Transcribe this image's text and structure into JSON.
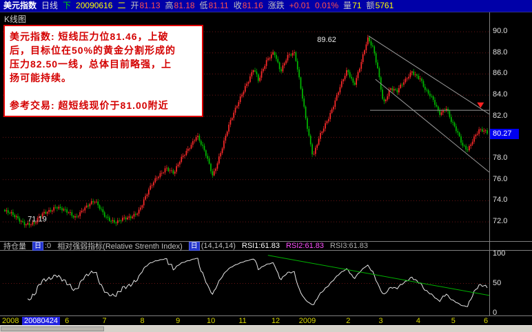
{
  "titlebar": {
    "bg": "#0000a8",
    "segments": [
      {
        "text": "美元指数",
        "color": "#ffffff",
        "bold": true
      },
      {
        "text": "日线",
        "color": "#e0e0e0"
      },
      {
        "text": "下",
        "color": "#00dd00"
      },
      {
        "text": "20090616",
        "color": "#ffff00"
      },
      {
        "text": "二",
        "color": "#ffff00"
      },
      {
        "text": "开",
        "color": "#c0c0c0",
        "tight": true
      },
      {
        "text": "81.13",
        "color": "#ff5050"
      },
      {
        "text": "高",
        "color": "#c0c0c0",
        "tight": true
      },
      {
        "text": "81.18",
        "color": "#ff5050"
      },
      {
        "text": "低",
        "color": "#c0c0c0",
        "tight": true
      },
      {
        "text": "81.11",
        "color": "#ff5050"
      },
      {
        "text": "收",
        "color": "#c0c0c0",
        "tight": true
      },
      {
        "text": "81.16",
        "color": "#ff5050"
      },
      {
        "text": "涨跌",
        "color": "#c0c0c0"
      },
      {
        "text": "+0.01",
        "color": "#ff5050"
      },
      {
        "text": "0.01%",
        "color": "#ff5050"
      },
      {
        "text": "量",
        "color": "#c0c0c0",
        "tight": true
      },
      {
        "text": "71",
        "color": "#ffff00"
      },
      {
        "text": "额",
        "color": "#c0c0c0",
        "tight": true
      },
      {
        "text": "5761",
        "color": "#ffff00"
      }
    ]
  },
  "chart_label": "K线图",
  "annotation": {
    "lines": [
      "美元指数: 短线压力位81.46，上破",
      "后，目标位在50%的黄金分割形成的",
      "压力82.50一线，总体目前略强，上",
      "扬可能持续。",
      "",
      "参考交易: 超短线现价于81.00附近"
    ]
  },
  "price_axis": {
    "ticks": [
      90,
      88,
      86,
      84,
      82,
      80,
      78,
      76,
      74,
      72
    ],
    "current_price": "80.27"
  },
  "peak_label": "89.62",
  "low_label": "71.19",
  "indicator_header": {
    "segments": [
      {
        "text": "持仓量",
        "color": "#c0c0c0"
      },
      {
        "text": "日",
        "color": "#ffffff",
        "chip": true
      },
      {
        "text": ":0",
        "color": "#c0c0c0"
      },
      {
        "text": "相对强弱指标(Relative Strenth Index)",
        "color": "#c0c0c0"
      },
      {
        "text": "日",
        "color": "#ffffff",
        "chip": true
      },
      {
        "text": "(14,14,14)",
        "color": "#c0c0c0"
      },
      {
        "text": "RSI1:61.83",
        "color": "#ffffff"
      },
      {
        "text": "RSI2:61.83",
        "color": "#ff50ff"
      },
      {
        "text": "RSI3:61.83",
        "color": "#b0b0b0"
      }
    ]
  },
  "rsi_axis": {
    "ticks": [
      100,
      50,
      0
    ]
  },
  "time_axis": {
    "year_label": "2008",
    "start_date": "20080424",
    "ticks": [
      {
        "label": "6",
        "f": 0.132
      },
      {
        "label": "7",
        "f": 0.209
      },
      {
        "label": "8",
        "f": 0.287
      },
      {
        "label": "9",
        "f": 0.36
      },
      {
        "label": "10",
        "f": 0.428
      },
      {
        "label": "11",
        "f": 0.493
      },
      {
        "label": "12",
        "f": 0.561
      },
      {
        "label": "2009",
        "f": 0.626
      },
      {
        "label": "2",
        "f": 0.71
      },
      {
        "label": "3",
        "f": 0.777
      },
      {
        "label": "4",
        "f": 0.854
      },
      {
        "label": "5",
        "f": 0.926
      },
      {
        "label": "6",
        "f": 0.993
      }
    ]
  },
  "chart_data": {
    "type": "candlestick",
    "title": "美元指数 日线 (US Dollar Index daily)",
    "date": "20090616",
    "ohlc": {
      "open": 81.13,
      "high": 81.18,
      "low": 81.11,
      "close": 81.16,
      "change": "+0.01",
      "change_pct": "0.01%",
      "volume": 71,
      "amount": 5761
    },
    "last_price_marker": 80.27,
    "marked_high": 89.62,
    "marked_low": 71.19,
    "y_axis": {
      "min": 70.3,
      "max": 91.83,
      "ticks": [
        90,
        88,
        86,
        84,
        82,
        80,
        78,
        76,
        74,
        72
      ]
    },
    "x_range": [
      "20080424",
      "20090616"
    ],
    "n_candles": 296,
    "close_waypoints": [
      [
        0.0,
        73.0
      ],
      [
        0.02,
        72.4
      ],
      [
        0.04,
        72.0
      ],
      [
        0.062,
        71.8
      ],
      [
        0.08,
        72.7
      ],
      [
        0.106,
        73.6
      ],
      [
        0.128,
        72.8
      ],
      [
        0.145,
        72.4
      ],
      [
        0.163,
        73.4
      ],
      [
        0.186,
        73.8
      ],
      [
        0.207,
        72.7
      ],
      [
        0.232,
        71.9
      ],
      [
        0.256,
        72.3
      ],
      [
        0.278,
        73.2
      ],
      [
        0.299,
        74.9
      ],
      [
        0.317,
        76.3
      ],
      [
        0.334,
        77.3
      ],
      [
        0.351,
        76.5
      ],
      [
        0.365,
        77.8
      ],
      [
        0.384,
        79.3
      ],
      [
        0.398,
        80.3
      ],
      [
        0.416,
        78.3
      ],
      [
        0.431,
        76.3
      ],
      [
        0.445,
        78.4
      ],
      [
        0.462,
        80.8
      ],
      [
        0.479,
        82.6
      ],
      [
        0.497,
        84.8
      ],
      [
        0.516,
        86.6
      ],
      [
        0.526,
        85.2
      ],
      [
        0.544,
        87.3
      ],
      [
        0.558,
        88.3
      ],
      [
        0.572,
        86.3
      ],
      [
        0.586,
        87.5
      ],
      [
        0.601,
        87.9
      ],
      [
        0.615,
        84.5
      ],
      [
        0.629,
        80.5
      ],
      [
        0.639,
        78.0
      ],
      [
        0.653,
        80.0
      ],
      [
        0.671,
        82.0
      ],
      [
        0.691,
        84.3
      ],
      [
        0.71,
        86.2
      ],
      [
        0.724,
        85.0
      ],
      [
        0.742,
        87.8
      ],
      [
        0.752,
        89.3
      ],
      [
        0.763,
        88.3
      ],
      [
        0.773,
        86.4
      ],
      [
        0.785,
        83.3
      ],
      [
        0.799,
        84.8
      ],
      [
        0.813,
        84.2
      ],
      [
        0.83,
        85.3
      ],
      [
        0.844,
        86.4
      ],
      [
        0.861,
        85.6
      ],
      [
        0.872,
        84.3
      ],
      [
        0.889,
        83.4
      ],
      [
        0.901,
        82.4
      ],
      [
        0.915,
        82.9
      ],
      [
        0.926,
        81.4
      ],
      [
        0.938,
        80.3
      ],
      [
        0.949,
        79.2
      ],
      [
        0.96,
        79.0
      ],
      [
        0.971,
        80.0
      ],
      [
        0.983,
        80.6
      ],
      [
        1.0,
        80.3
      ]
    ],
    "annotations": [
      {
        "type": "text",
        "label": "89.62",
        "f": 0.652,
        "price": 89.3
      },
      {
        "type": "text",
        "label": "71.19",
        "f": 0.057,
        "price": 72.3
      },
      {
        "type": "arrow-down",
        "f": 0.982,
        "price": 83.3
      }
    ],
    "overlays": {
      "channel_lines": [
        {
          "f1": 0.752,
          "p1": 89.6,
          "f2": 1.0,
          "p2": 82.2
        },
        {
          "f1": 0.766,
          "p1": 85.5,
          "f2": 1.0,
          "p2": 76.7
        }
      ],
      "horizontal_line": {
        "price": 82.56,
        "f1": 0.755,
        "f2": 1.0
      }
    },
    "colors": {
      "up": "#ff2a2a",
      "down": "#00bb00",
      "grid": "#6b1515",
      "trend": "#9a9a9a",
      "rsi_line": "#e8e8e8",
      "rsi_trend": "#00b400",
      "arrow": "#ff2020"
    },
    "rsi": {
      "label": "相对强弱指标(Relative Strenth Index)",
      "periods": "(14,14,14)",
      "rsi1": 61.83,
      "rsi2": 61.83,
      "rsi3": 61.83,
      "axis_ticks": [
        100,
        50,
        0
      ],
      "trendline": {
        "f1": 0.545,
        "v1": 97,
        "f2": 1.0,
        "v2": 30
      }
    }
  }
}
